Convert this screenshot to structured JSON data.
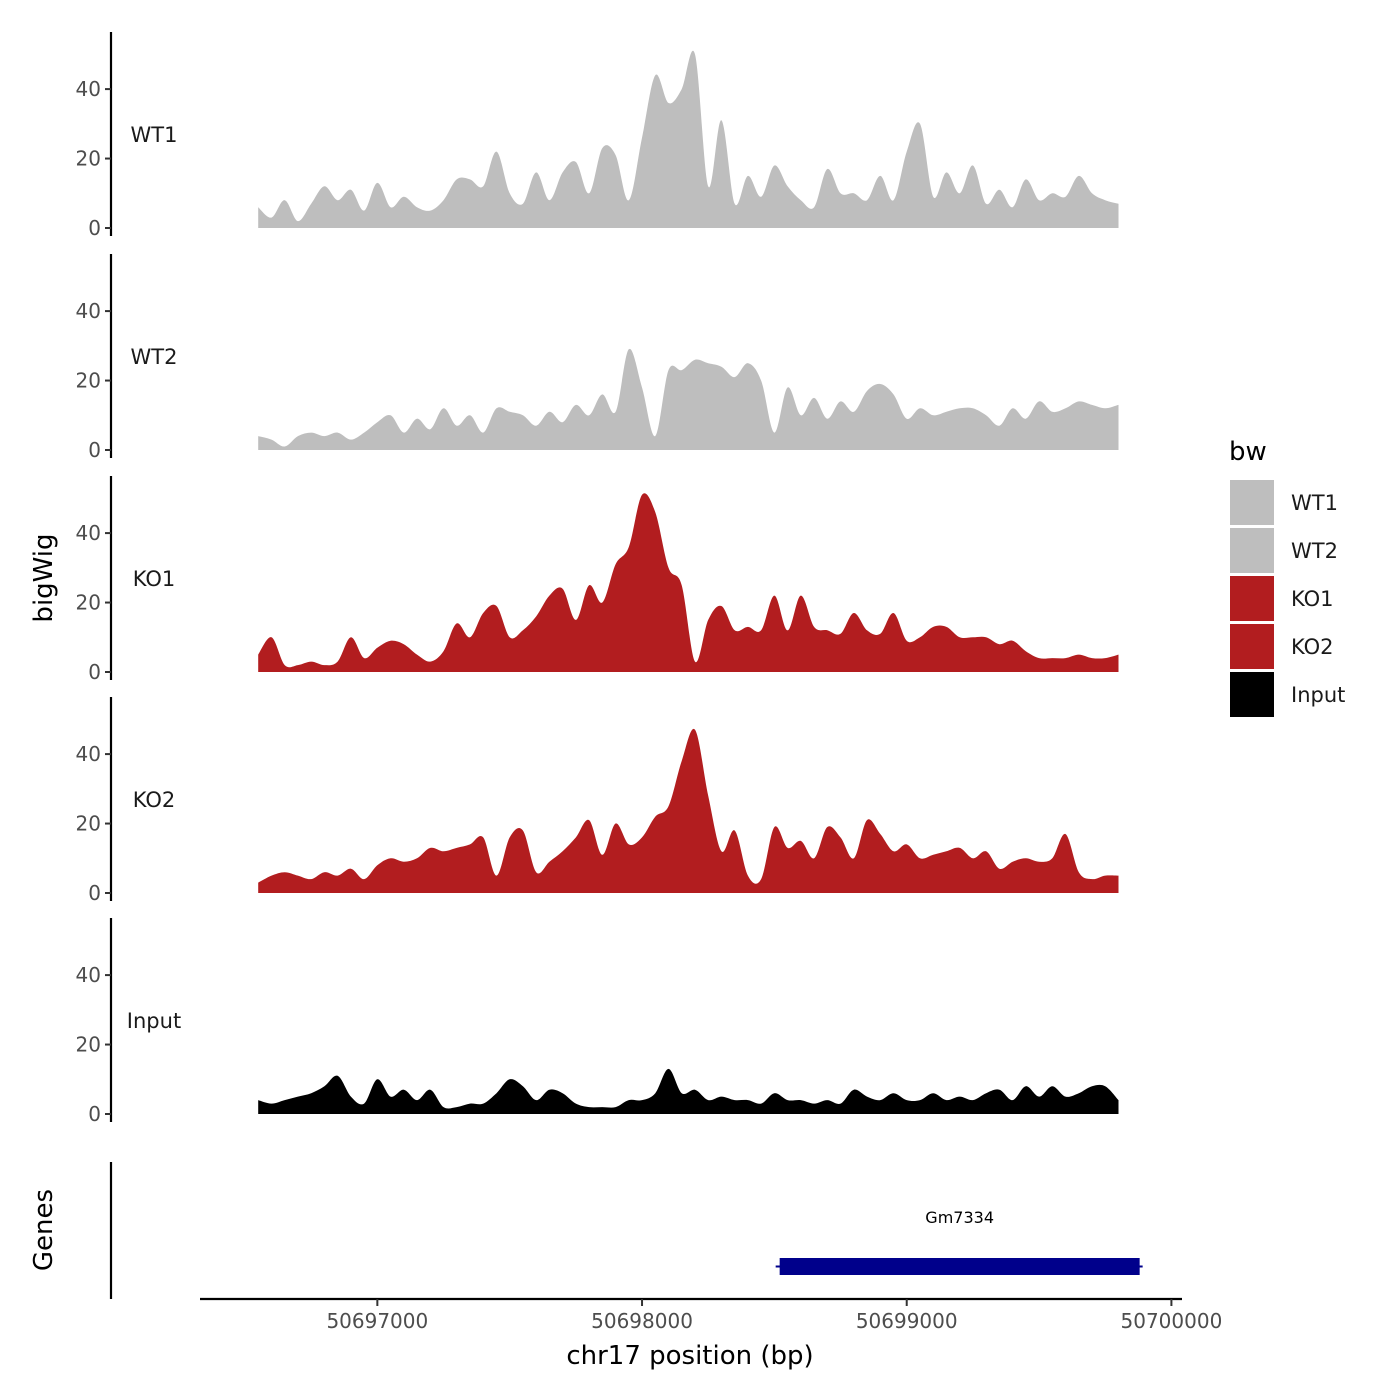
{
  "chart_data": {
    "type": "area",
    "title": "",
    "xlabel": "chr17 position (bp)",
    "ylabel": "bigWig",
    "gene_panel_label": "Genes",
    "xlim": [
      50696330,
      50700040
    ],
    "x_ticks": [
      50697000,
      50698000,
      50699000,
      50700000
    ],
    "x_tick_labels": [
      "50697000",
      "50698000",
      "50699000",
      "50700000"
    ],
    "ylim": [
      0,
      55
    ],
    "y_ticks": [
      0,
      20,
      40
    ],
    "y_tick_labels": [
      "0",
      "20",
      "40"
    ],
    "legend": {
      "title": "bw",
      "position": "right",
      "entries": [
        {
          "label": "WT1",
          "color": "#bebebe"
        },
        {
          "label": "WT2",
          "color": "#bebebe"
        },
        {
          "label": "KO1",
          "color": "#b21d1f"
        },
        {
          "label": "KO2",
          "color": "#b21d1f"
        },
        {
          "label": "Input",
          "color": "#000000"
        }
      ]
    },
    "x_start": 50696550,
    "x_step": 50,
    "series": [
      {
        "name": "WT1",
        "color": "#bebebe",
        "values": [
          6,
          3,
          8,
          2,
          7,
          12,
          8,
          11,
          5,
          13,
          6,
          9,
          6,
          5,
          8,
          14,
          14,
          12,
          22,
          10,
          7,
          16,
          8,
          16,
          19,
          10,
          23,
          21,
          8,
          26,
          44,
          36,
          40,
          50,
          12,
          31,
          7,
          15,
          9,
          18,
          12,
          8,
          6,
          17,
          10,
          10,
          8,
          15,
          8,
          22,
          30,
          9,
          16,
          10,
          18,
          7,
          11,
          6,
          14,
          8,
          10,
          9,
          15,
          10,
          8,
          7
        ]
      },
      {
        "name": "WT2",
        "color": "#bebebe",
        "values": [
          4,
          3,
          1,
          4,
          5,
          4,
          5,
          3,
          5,
          8,
          10,
          5,
          9,
          6,
          12,
          7,
          10,
          5,
          12,
          11,
          10,
          7,
          11,
          8,
          13,
          10,
          16,
          11,
          29,
          18,
          4,
          23,
          23,
          26,
          25,
          24,
          21,
          25,
          20,
          5,
          18,
          10,
          15,
          9,
          14,
          11,
          17,
          19,
          16,
          9,
          12,
          10,
          11,
          12,
          12,
          10,
          7,
          12,
          9,
          14,
          11,
          12,
          14,
          13,
          12,
          13
        ]
      },
      {
        "name": "KO1",
        "color": "#b21d1f",
        "values": [
          5,
          10,
          2,
          2,
          3,
          2,
          3,
          10,
          4,
          7,
          9,
          8,
          5,
          3,
          6,
          14,
          10,
          17,
          19,
          10,
          12,
          16,
          22,
          24,
          15,
          25,
          20,
          31,
          36,
          51,
          46,
          30,
          25,
          3,
          15,
          19,
          12,
          13,
          12,
          22,
          12,
          22,
          13,
          12,
          11,
          17,
          12,
          11,
          17,
          9,
          10,
          13,
          13,
          10,
          10,
          10,
          8,
          9,
          6,
          4,
          4,
          4,
          5,
          4,
          4,
          5
        ]
      },
      {
        "name": "KO2",
        "color": "#b21d1f",
        "values": [
          3,
          5,
          6,
          5,
          4,
          6,
          5,
          7,
          4,
          8,
          10,
          9,
          10,
          13,
          12,
          13,
          14,
          16,
          5,
          16,
          18,
          6,
          9,
          12,
          16,
          21,
          11,
          20,
          14,
          16,
          22,
          25,
          38,
          47,
          28,
          12,
          18,
          5,
          4,
          19,
          13,
          15,
          10,
          19,
          16,
          10,
          21,
          17,
          12,
          14,
          10,
          11,
          12,
          13,
          10,
          12,
          7,
          9,
          10,
          9,
          10,
          17,
          6,
          4,
          5,
          5
        ]
      },
      {
        "name": "Input",
        "color": "#000000",
        "values": [
          4,
          3,
          4,
          5,
          6,
          8,
          11,
          5,
          3,
          10,
          5,
          7,
          4,
          7,
          2,
          2,
          3,
          3,
          6,
          10,
          8,
          4,
          7,
          6,
          3,
          2,
          2,
          2,
          4,
          4,
          6,
          13,
          6,
          7,
          4,
          5,
          4,
          4,
          3,
          6,
          4,
          4,
          3,
          4,
          3,
          7,
          5,
          4,
          6,
          4,
          4,
          6,
          4,
          5,
          4,
          6,
          7,
          4,
          8,
          5,
          8,
          5,
          6,
          8,
          8,
          4
        ]
      }
    ],
    "genes": [
      {
        "name": "Gm7334",
        "start": 50698520,
        "end": 50699880,
        "color": "#00008b"
      }
    ]
  }
}
